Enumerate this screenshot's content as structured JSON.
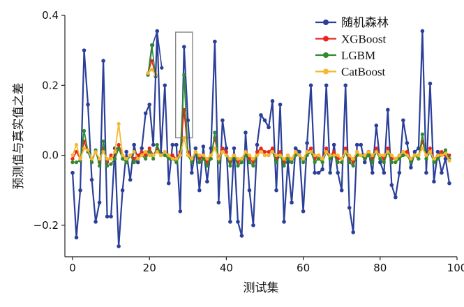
{
  "chart_data": {
    "type": "line",
    "title": "",
    "xlabel": "测试集",
    "ylabel": "预测值与真实值之差",
    "xlim": [
      -2,
      100
    ],
    "ylim": [
      -0.29,
      0.4
    ],
    "xticks": [
      0,
      20,
      40,
      60,
      80,
      100
    ],
    "yticks": [
      -0.2,
      0.0,
      0.2,
      0.4
    ],
    "ytick_labels": [
      "−0.2",
      "0.0",
      "0.2",
      "0.4"
    ],
    "legend_position": "top-right",
    "series": [
      {
        "name": "随机森林",
        "color": "#2b3f99",
        "values": [
          -0.05,
          -0.235,
          -0.1,
          0.3,
          0.145,
          -0.07,
          -0.19,
          -0.135,
          0.27,
          -0.175,
          -0.175,
          0.02,
          -0.26,
          -0.1,
          0.01,
          -0.07,
          0.03,
          -0.02,
          0.02,
          0.12,
          0.145,
          0.03,
          0.355,
          0.005,
          0.2,
          -0.08,
          0.03,
          0.03,
          -0.16,
          0.31,
          0.1,
          -0.05,
          0.02,
          -0.1,
          0.025,
          -0.075,
          0.02,
          0.325,
          -0.135,
          0.1,
          0.02,
          -0.19,
          0.02,
          -0.19,
          -0.23,
          0.065,
          -0.1,
          -0.2,
          0.03,
          0.115,
          0.1,
          0.08,
          0.155,
          -0.1,
          0.145,
          -0.19,
          -0.02,
          -0.135,
          0.02,
          0.01,
          -0.16,
          0.035,
          0.2,
          -0.05,
          -0.05,
          -0.04,
          0.2,
          -0.05,
          0.03,
          -0.05,
          -0.1,
          0.2,
          -0.15,
          -0.22,
          0.03,
          0.03,
          -0.02,
          0.01,
          -0.05,
          0.085,
          -0.02,
          -0.05,
          0.13,
          -0.085,
          -0.12,
          -0.05,
          0.1,
          0.035,
          -0.035,
          0.01,
          0.02,
          0.355,
          -0.05,
          0.205,
          -0.075,
          0.01,
          -0.05,
          -0.01,
          -0.08
        ],
        "inset_values": [
          0.23,
          0.315,
          0.355,
          0.25
        ]
      },
      {
        "name": "XGBoost",
        "color": "#e8261e",
        "values": [
          -0.01,
          0.01,
          -0.01,
          0.04,
          0.01,
          -0.01,
          0.01,
          -0.02,
          0.02,
          -0.02,
          0.0,
          -0.01,
          0.03,
          0.0,
          -0.01,
          0.0,
          -0.01,
          0.0,
          0.01,
          0.0,
          0.02,
          0.0,
          0.02,
          0.0,
          0.01,
          0.0,
          0.0,
          -0.01,
          0.01,
          0.13,
          0.01,
          -0.01,
          0.01,
          -0.01,
          0.0,
          -0.02,
          0.0,
          0.05,
          -0.01,
          0.02,
          0.01,
          -0.02,
          0.0,
          -0.02,
          -0.01,
          0.01,
          -0.01,
          -0.02,
          0.01,
          0.02,
          0.01,
          0.01,
          0.02,
          -0.01,
          0.01,
          -0.02,
          0.0,
          -0.01,
          0.01,
          0.0,
          -0.01,
          0.01,
          0.02,
          -0.01,
          0.0,
          -0.01,
          0.02,
          0.0,
          0.01,
          -0.01,
          -0.01,
          0.02,
          -0.01,
          -0.02,
          0.01,
          0.0,
          0.0,
          0.01,
          -0.01,
          0.02,
          0.0,
          -0.01,
          0.02,
          -0.01,
          -0.01,
          0.0,
          0.01,
          0.01,
          -0.01,
          0.0,
          0.0,
          0.04,
          0.0,
          0.02,
          -0.01,
          0.0,
          0.01,
          0.0,
          0.0
        ],
        "inset_values": [
          0.235,
          0.27,
          0.23
        ]
      },
      {
        "name": "LGBM",
        "color": "#2e8b2e",
        "values": [
          -0.02,
          -0.02,
          -0.015,
          0.07,
          0.01,
          -0.02,
          0.015,
          -0.03,
          0.04,
          -0.03,
          -0.025,
          -0.01,
          0.02,
          -0.01,
          -0.02,
          0.0,
          -0.02,
          -0.01,
          0.0,
          -0.01,
          0.01,
          -0.01,
          0.03,
          0.0,
          0.0,
          -0.01,
          -0.01,
          -0.02,
          0.0,
          0.23,
          0.0,
          -0.02,
          0.01,
          -0.02,
          -0.01,
          -0.03,
          -0.01,
          0.065,
          -0.02,
          0.01,
          0.0,
          -0.03,
          0.0,
          -0.03,
          -0.02,
          0.0,
          -0.02,
          -0.03,
          0.0,
          0.01,
          0.0,
          0.0,
          0.01,
          -0.02,
          0.0,
          -0.03,
          -0.01,
          -0.02,
          0.0,
          0.0,
          -0.02,
          0.0,
          0.01,
          -0.02,
          -0.01,
          -0.02,
          0.01,
          -0.01,
          0.0,
          -0.02,
          -0.02,
          0.01,
          -0.02,
          -0.03,
          0.0,
          0.0,
          -0.01,
          0.0,
          -0.02,
          0.01,
          -0.01,
          -0.02,
          0.01,
          -0.02,
          -0.02,
          -0.01,
          0.0,
          0.0,
          -0.02,
          0.0,
          -0.01,
          0.06,
          -0.01,
          0.01,
          -0.02,
          -0.01,
          0.0,
          0.015,
          -0.01
        ],
        "inset_values": [
          0.23,
          0.315,
          0.225
        ]
      },
      {
        "name": "CatBoost",
        "color": "#f5b82e",
        "values": [
          0.0,
          0.03,
          -0.01,
          0.02,
          0.015,
          -0.01,
          0.01,
          -0.01,
          0.01,
          -0.01,
          -0.01,
          0.01,
          0.09,
          0.0,
          -0.01,
          0.0,
          0.01,
          -0.01,
          0.0,
          0.01,
          0.0,
          0.0,
          0.01,
          0.0,
          0.01,
          0.0,
          -0.01,
          -0.01,
          0.0,
          0.05,
          0.0,
          -0.01,
          0.01,
          0.0,
          0.0,
          -0.01,
          0.0,
          0.02,
          -0.01,
          0.01,
          0.0,
          -0.01,
          0.0,
          -0.01,
          -0.01,
          0.01,
          0.0,
          -0.01,
          0.0,
          0.01,
          0.0,
          0.0,
          0.01,
          0.0,
          0.0,
          -0.01,
          0.0,
          -0.01,
          0.01,
          0.0,
          -0.01,
          0.01,
          0.01,
          0.0,
          0.0,
          -0.01,
          0.01,
          0.0,
          0.0,
          0.0,
          -0.01,
          0.01,
          0.0,
          -0.01,
          0.01,
          0.0,
          0.0,
          0.01,
          0.0,
          0.01,
          0.0,
          0.0,
          0.01,
          0.0,
          -0.01,
          0.0,
          0.01,
          0.0,
          -0.01,
          0.0,
          0.0,
          0.02,
          0.0,
          0.01,
          -0.01,
          0.0,
          0.0,
          0.005,
          -0.015
        ],
        "inset_values": [
          0.235,
          0.245,
          0.23
        ]
      }
    ]
  }
}
